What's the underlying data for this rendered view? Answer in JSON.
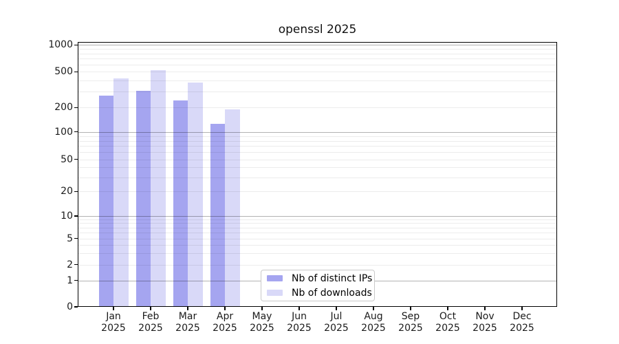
{
  "title": "openssl 2025",
  "legend": {
    "items": [
      {
        "label": "Nb of distinct IPs",
        "color": "#a5a5f0"
      },
      {
        "label": "Nb of downloads",
        "color": "#d9d9f8"
      }
    ]
  },
  "chart_data": {
    "type": "bar",
    "title": "openssl 2025",
    "categories": [
      "Jan",
      "Feb",
      "Mar",
      "Apr",
      "May",
      "Jun",
      "Jul",
      "Aug",
      "Sep",
      "Oct",
      "Nov",
      "Dec"
    ],
    "category_sublabel": "2025",
    "series": [
      {
        "name": "Nb of distinct IPs",
        "color": "#a5a5f0",
        "values": [
          270,
          305,
          240,
          125,
          null,
          null,
          null,
          null,
          null,
          null,
          null,
          null
        ]
      },
      {
        "name": "Nb of downloads",
        "color": "#d9d9f8",
        "values": [
          425,
          525,
          380,
          190,
          null,
          null,
          null,
          null,
          null,
          null,
          null,
          null
        ]
      }
    ],
    "xlabel": "",
    "ylabel": "",
    "yaxis": {
      "scale": "symlog",
      "tick_labels": [
        "0",
        "1",
        "2",
        "5",
        "10",
        "20",
        "50",
        "100",
        "200",
        "500",
        "1000"
      ],
      "tick_values": [
        0,
        1,
        2,
        5,
        10,
        20,
        50,
        100,
        200,
        500,
        1000
      ],
      "range": [
        0,
        1100
      ]
    },
    "grid": "on",
    "legend_position": "lower center"
  }
}
